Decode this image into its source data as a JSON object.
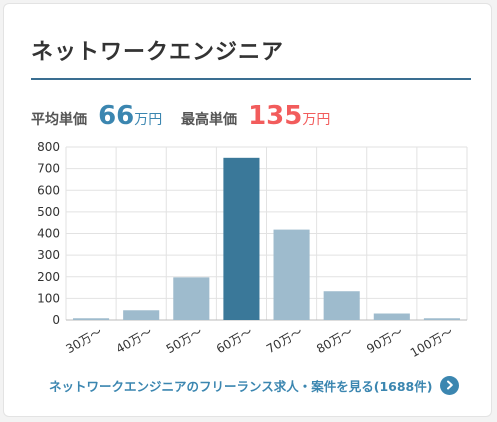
{
  "title": "ネットワークエンジニア",
  "stats": {
    "avg_label": "平均単価",
    "avg_value": "66",
    "avg_unit": "万円",
    "max_label": "最高単価",
    "max_value": "135",
    "max_unit": "万円"
  },
  "colors": {
    "accent": "#3b86b0",
    "highlight": "#f25c5c",
    "bar": "#9ebbcd",
    "bar_highlight": "#3a7899",
    "rule": "#3a6e91"
  },
  "chart_data": {
    "type": "bar",
    "categories": [
      "30万～",
      "40万～",
      "50万～",
      "60万～",
      "70万～",
      "80万～",
      "90万～",
      "100万～"
    ],
    "values": [
      8,
      45,
      197,
      750,
      418,
      133,
      30,
      8
    ],
    "highlight_index": 3,
    "ylim": [
      0,
      800
    ],
    "yticks": [
      0,
      100,
      200,
      300,
      400,
      500,
      600,
      700,
      800
    ],
    "grid": true,
    "xlabel": "",
    "ylabel": ""
  },
  "link": {
    "label": "ネットワークエンジニアのフリーランス求人・案件を見る(1688件)",
    "icon": "chevron-right-icon"
  }
}
